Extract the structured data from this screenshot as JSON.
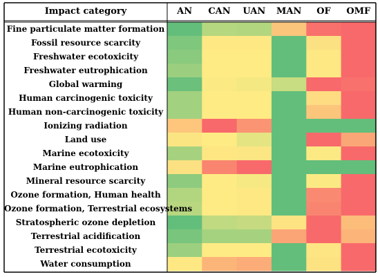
{
  "chart_data": {
    "type": "heatmap",
    "corner_label": "Impact category",
    "columns": [
      "AN",
      "CAN",
      "UAN",
      "MAN",
      "OF",
      "OMF"
    ],
    "rows": [
      "Fine particulate matter formation",
      "Fossil resource scarcity",
      "Freshwater ecotoxicity",
      "Freshwater eutrophication",
      "Global warming",
      "Human carcinogenic toxicity",
      "Human non-carcinogenic toxicity",
      "Ionizing radiation",
      "Land use",
      "Marine ecotoxicity",
      "Marine eutrophication",
      "Mineral resource scarcity",
      "Ozone formation, Human health",
      "Ozone formation, Terrestrial ecosystems",
      "Stratospheric ozone depletion",
      "Terrestrial acidification",
      "Terrestrial ecotoxicity",
      "Water consumption"
    ],
    "cell_colors": [
      [
        "#63be7b",
        "#b5d780",
        "#b2d680",
        "#fbc57c",
        "#f8716c",
        "#f8696b"
      ],
      [
        "#7fc77d",
        "#fde883",
        "#fde883",
        "#63be7b",
        "#fbe182",
        "#f8696b"
      ],
      [
        "#89ca7e",
        "#ffeb84",
        "#ffeb84",
        "#63be7b",
        "#fde883",
        "#f8696b"
      ],
      [
        "#9bcf7f",
        "#ffeb84",
        "#ffeb84",
        "#63be7b",
        "#fde883",
        "#f8696b"
      ],
      [
        "#6bc07b",
        "#fbea84",
        "#f4e883",
        "#c8dc81",
        "#f8696b",
        "#f8716c"
      ],
      [
        "#a2d17f",
        "#ffeb84",
        "#ffeb84",
        "#63be7b",
        "#fddc82",
        "#f8696b"
      ],
      [
        "#a2d17f",
        "#ffeb84",
        "#ffeb84",
        "#63be7b",
        "#fcc57c",
        "#f8696b"
      ],
      [
        "#fdc67c",
        "#f8696b",
        "#fa9473",
        "#63be7b",
        "#63be7b",
        "#63be7b"
      ],
      [
        "#fbe583",
        "#ffeb84",
        "#e4e483",
        "#63be7b",
        "#f8696b",
        "#fba676"
      ],
      [
        "#a6d27f",
        "#fee683",
        "#fbe683",
        "#63be7b",
        "#fbea84",
        "#f8696b"
      ],
      [
        "#fbe182",
        "#f98570",
        "#f8696b",
        "#63be7b",
        "#63be7b",
        "#63be7b"
      ],
      [
        "#8ecb7e",
        "#ffeb84",
        "#f6e883",
        "#63be7b",
        "#fbea84",
        "#f8696b"
      ],
      [
        "#b2d680",
        "#ffeb84",
        "#fde883",
        "#63be7b",
        "#f98a71",
        "#f8696b"
      ],
      [
        "#b8d780",
        "#ffeb84",
        "#fde883",
        "#63be7b",
        "#f98570",
        "#f8696b"
      ],
      [
        "#63be7b",
        "#c0da81",
        "#c6db81",
        "#fee383",
        "#f8696b",
        "#fcbd7b"
      ],
      [
        "#79c57d",
        "#a5d27f",
        "#a6d27f",
        "#fba577",
        "#f8696b",
        "#fcb479"
      ],
      [
        "#9ccf7f",
        "#ffeb84",
        "#ffeb84",
        "#63be7b",
        "#fde583",
        "#f8696b"
      ],
      [
        "#fde883",
        "#fcb579",
        "#fbac78",
        "#63be7b",
        "#fde282",
        "#f8696b"
      ]
    ]
  }
}
